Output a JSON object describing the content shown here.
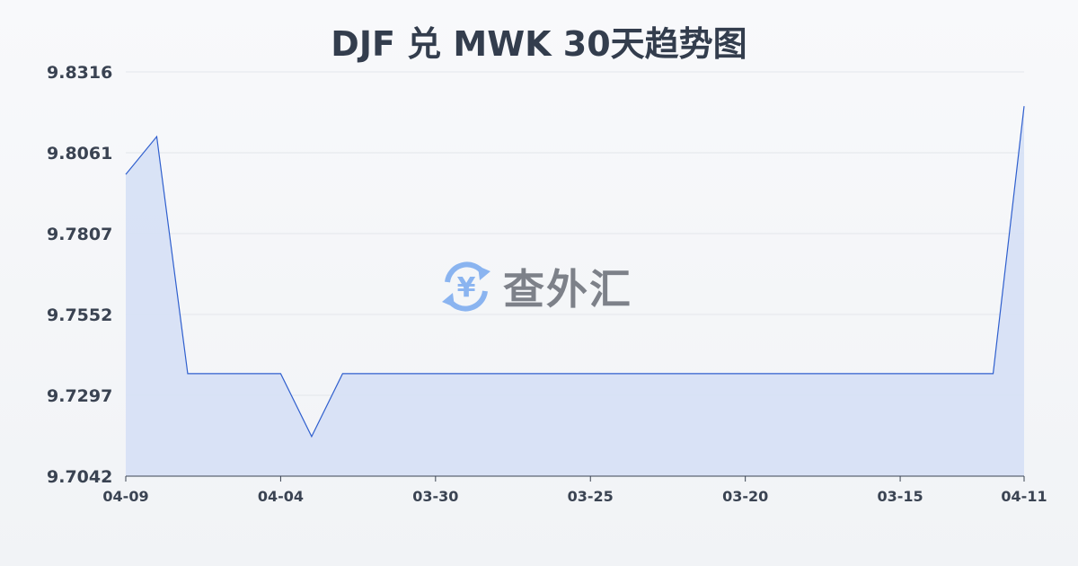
{
  "watermark": "查外汇",
  "colors": {
    "line": "#2f5fce",
    "fill": "#d6e0f5",
    "grid": "#e3e6eb",
    "watermark_icon": "#8ab4f0"
  },
  "chart_data": {
    "type": "area",
    "title": "DJF 兑 MWK 30天趋势图",
    "xlabel": "",
    "ylabel": "",
    "x_ticks": [
      "04-09",
      "04-04",
      "03-30",
      "03-25",
      "03-20",
      "03-15",
      "04-11"
    ],
    "x_tick_index": [
      0,
      5,
      10,
      15,
      20,
      25,
      29
    ],
    "y_ticks": [
      "9.8316",
      "9.8061",
      "9.7807",
      "9.7552",
      "9.7297",
      "9.7042"
    ],
    "ylim": [
      9.7042,
      9.8316
    ],
    "grid": true,
    "values": [
      9.7993,
      9.8112,
      9.7365,
      9.7365,
      9.7365,
      9.7365,
      9.7167,
      9.7365,
      9.7365,
      9.7365,
      9.7365,
      9.7365,
      9.7365,
      9.7365,
      9.7365,
      9.7365,
      9.7365,
      9.7365,
      9.7365,
      9.7365,
      9.7365,
      9.7365,
      9.7365,
      9.7365,
      9.7365,
      9.7365,
      9.7365,
      9.7365,
      9.7365,
      9.8208
    ]
  }
}
